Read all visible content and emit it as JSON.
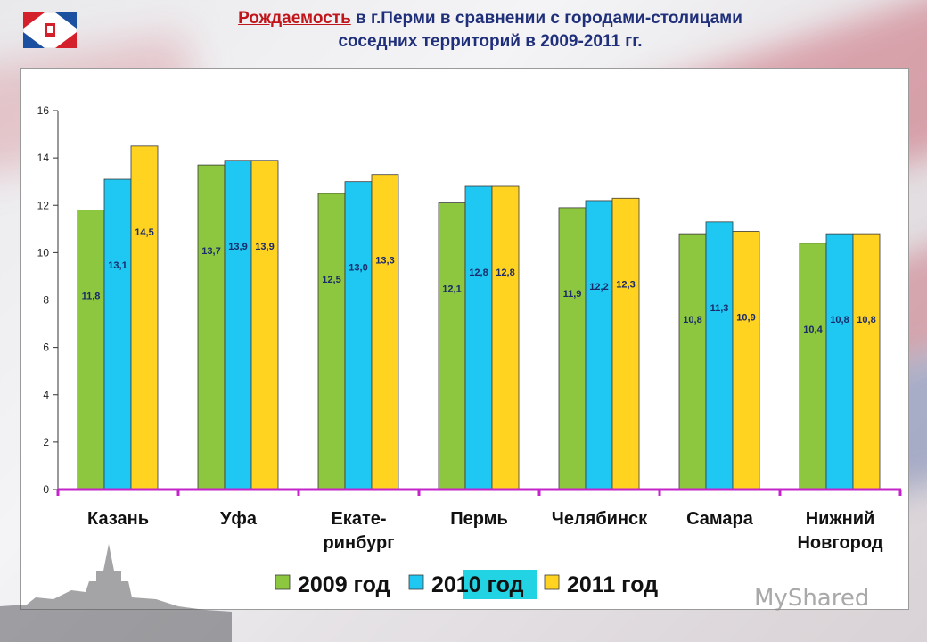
{
  "title": {
    "part_underlined": "Рождаемость",
    "part_rest": " в г.Перми в сравнении с городами-столицами",
    "line2": "соседних территорий в 2009-2011  гг."
  },
  "watermark": "MyShared",
  "colors": {
    "series_2009": "#8dc63f",
    "series_2010": "#1ec8f2",
    "series_2011": "#ffd320",
    "baseline": "#c424c9",
    "title_red": "#c0151b",
    "title_blue": "#1f2f7a",
    "highlight": "#22d3e3"
  },
  "chart_data": {
    "type": "bar",
    "categories": [
      [
        "Казань"
      ],
      [
        "Уфа"
      ],
      [
        "Екате-",
        "ринбург"
      ],
      [
        "Пермь"
      ],
      [
        "Челябинск"
      ],
      [
        "Самара"
      ],
      [
        "Нижний",
        "Новгород"
      ]
    ],
    "highlight_category": 3,
    "series": [
      {
        "name": "2009 год",
        "values": [
          11.8,
          13.7,
          12.5,
          12.1,
          11.9,
          10.8,
          10.4
        ],
        "labels": [
          "11,8",
          "13,7",
          "12,5",
          "12,1",
          "11,9",
          "10,8",
          "10,4"
        ]
      },
      {
        "name": "2010 год",
        "values": [
          13.1,
          13.9,
          13.0,
          12.8,
          12.2,
          11.3,
          10.8
        ],
        "labels": [
          "13,1",
          "13,9",
          "13,0",
          "12,8",
          "12,2",
          "11,3",
          "10,8"
        ]
      },
      {
        "name": "2011 год",
        "values": [
          14.5,
          13.9,
          13.3,
          12.8,
          12.3,
          10.9,
          10.8
        ],
        "labels": [
          "14,5",
          "13,9",
          "13,3",
          "12,8",
          "12,3",
          "10,9",
          "10,8"
        ]
      }
    ],
    "ylim": [
      0,
      16
    ],
    "yticks": [
      0,
      2,
      4,
      6,
      8,
      10,
      12,
      14,
      16
    ],
    "legend_position": "bottom",
    "grid": false
  }
}
